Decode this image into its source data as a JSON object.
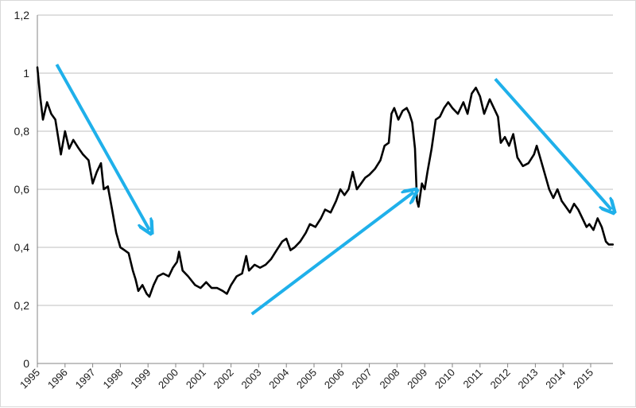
{
  "chart_data": {
    "type": "line",
    "title": "",
    "xlabel": "",
    "ylabel": "",
    "xlim": [
      1995,
      2015.8
    ],
    "ylim": [
      0,
      1.2
    ],
    "y_ticks": [
      0,
      0.2,
      0.4,
      0.6,
      0.8,
      1,
      1.2
    ],
    "y_tick_labels": [
      "0",
      "0,2",
      "0,4",
      "0,6",
      "0,8",
      "1",
      "1,2"
    ],
    "x_ticks": [
      1995,
      1996,
      1997,
      1998,
      1999,
      2000,
      2001,
      2002,
      2003,
      2004,
      2005,
      2006,
      2007,
      2008,
      2009,
      2010,
      2011,
      2012,
      2013,
      2014,
      2015
    ],
    "x_tick_labels": [
      "1995",
      "1996",
      "1997",
      "1998",
      "1999",
      "2000",
      "2001",
      "2002",
      "2003",
      "2004",
      "2005",
      "2006",
      "2007",
      "2008",
      "2009",
      "2010",
      "2011",
      "2012",
      "2013",
      "2014",
      "2015"
    ],
    "grid": "horizontal",
    "legend": "none",
    "series": [
      {
        "color": "#000000",
        "points": [
          [
            1995.0,
            1.02
          ],
          [
            1995.1,
            0.92
          ],
          [
            1995.2,
            0.84
          ],
          [
            1995.35,
            0.9
          ],
          [
            1995.5,
            0.86
          ],
          [
            1995.65,
            0.84
          ],
          [
            1995.85,
            0.72
          ],
          [
            1996.0,
            0.8
          ],
          [
            1996.15,
            0.74
          ],
          [
            1996.3,
            0.77
          ],
          [
            1996.5,
            0.74
          ],
          [
            1996.65,
            0.72
          ],
          [
            1996.85,
            0.7
          ],
          [
            1997.0,
            0.62
          ],
          [
            1997.15,
            0.66
          ],
          [
            1997.3,
            0.69
          ],
          [
            1997.4,
            0.6
          ],
          [
            1997.55,
            0.61
          ],
          [
            1997.7,
            0.53
          ],
          [
            1997.85,
            0.45
          ],
          [
            1998.0,
            0.4
          ],
          [
            1998.15,
            0.39
          ],
          [
            1998.3,
            0.38
          ],
          [
            1998.45,
            0.32
          ],
          [
            1998.55,
            0.29
          ],
          [
            1998.65,
            0.25
          ],
          [
            1998.8,
            0.27
          ],
          [
            1998.95,
            0.24
          ],
          [
            1999.05,
            0.23
          ],
          [
            1999.2,
            0.27
          ],
          [
            1999.35,
            0.3
          ],
          [
            1999.55,
            0.31
          ],
          [
            1999.75,
            0.3
          ],
          [
            1999.9,
            0.33
          ],
          [
            2000.05,
            0.35
          ],
          [
            2000.12,
            0.385
          ],
          [
            2000.25,
            0.32
          ],
          [
            2000.45,
            0.3
          ],
          [
            2000.7,
            0.27
          ],
          [
            2000.9,
            0.26
          ],
          [
            2001.1,
            0.28
          ],
          [
            2001.3,
            0.26
          ],
          [
            2001.5,
            0.26
          ],
          [
            2001.7,
            0.25
          ],
          [
            2001.85,
            0.24
          ],
          [
            2002.0,
            0.27
          ],
          [
            2002.2,
            0.3
          ],
          [
            2002.4,
            0.31
          ],
          [
            2002.55,
            0.37
          ],
          [
            2002.65,
            0.32
          ],
          [
            2002.85,
            0.34
          ],
          [
            2003.05,
            0.33
          ],
          [
            2003.25,
            0.34
          ],
          [
            2003.45,
            0.36
          ],
          [
            2003.65,
            0.39
          ],
          [
            2003.85,
            0.42
          ],
          [
            2004.0,
            0.43
          ],
          [
            2004.15,
            0.39
          ],
          [
            2004.3,
            0.4
          ],
          [
            2004.5,
            0.42
          ],
          [
            2004.7,
            0.45
          ],
          [
            2004.85,
            0.48
          ],
          [
            2005.05,
            0.47
          ],
          [
            2005.25,
            0.5
          ],
          [
            2005.4,
            0.53
          ],
          [
            2005.6,
            0.52
          ],
          [
            2005.8,
            0.56
          ],
          [
            2005.95,
            0.6
          ],
          [
            2006.1,
            0.58
          ],
          [
            2006.25,
            0.6
          ],
          [
            2006.4,
            0.66
          ],
          [
            2006.55,
            0.6
          ],
          [
            2006.7,
            0.62
          ],
          [
            2006.85,
            0.64
          ],
          [
            2007.0,
            0.65
          ],
          [
            2007.2,
            0.67
          ],
          [
            2007.4,
            0.7
          ],
          [
            2007.55,
            0.75
          ],
          [
            2007.7,
            0.76
          ],
          [
            2007.8,
            0.86
          ],
          [
            2007.9,
            0.88
          ],
          [
            2008.05,
            0.84
          ],
          [
            2008.2,
            0.87
          ],
          [
            2008.35,
            0.88
          ],
          [
            2008.45,
            0.86
          ],
          [
            2008.55,
            0.83
          ],
          [
            2008.65,
            0.74
          ],
          [
            2008.72,
            0.56
          ],
          [
            2008.78,
            0.54
          ],
          [
            2008.9,
            0.62
          ],
          [
            2009.0,
            0.6
          ],
          [
            2009.1,
            0.66
          ],
          [
            2009.25,
            0.74
          ],
          [
            2009.4,
            0.84
          ],
          [
            2009.55,
            0.85
          ],
          [
            2009.7,
            0.88
          ],
          [
            2009.85,
            0.9
          ],
          [
            2010.0,
            0.88
          ],
          [
            2010.2,
            0.86
          ],
          [
            2010.4,
            0.9
          ],
          [
            2010.55,
            0.86
          ],
          [
            2010.7,
            0.93
          ],
          [
            2010.85,
            0.95
          ],
          [
            2011.0,
            0.92
          ],
          [
            2011.15,
            0.86
          ],
          [
            2011.35,
            0.91
          ],
          [
            2011.5,
            0.88
          ],
          [
            2011.65,
            0.85
          ],
          [
            2011.75,
            0.76
          ],
          [
            2011.9,
            0.78
          ],
          [
            2012.05,
            0.75
          ],
          [
            2012.2,
            0.79
          ],
          [
            2012.35,
            0.71
          ],
          [
            2012.55,
            0.68
          ],
          [
            2012.75,
            0.69
          ],
          [
            2012.95,
            0.72
          ],
          [
            2013.05,
            0.75
          ],
          [
            2013.2,
            0.7
          ],
          [
            2013.35,
            0.65
          ],
          [
            2013.5,
            0.6
          ],
          [
            2013.65,
            0.57
          ],
          [
            2013.8,
            0.6
          ],
          [
            2013.95,
            0.56
          ],
          [
            2014.1,
            0.54
          ],
          [
            2014.25,
            0.52
          ],
          [
            2014.4,
            0.55
          ],
          [
            2014.55,
            0.53
          ],
          [
            2014.7,
            0.5
          ],
          [
            2014.85,
            0.47
          ],
          [
            2014.95,
            0.48
          ],
          [
            2015.1,
            0.46
          ],
          [
            2015.25,
            0.5
          ],
          [
            2015.4,
            0.47
          ],
          [
            2015.55,
            0.42
          ],
          [
            2015.65,
            0.41
          ],
          [
            2015.8,
            0.41
          ]
        ]
      }
    ],
    "annotations": [
      {
        "type": "arrow",
        "color": "#1fb0ea",
        "from": [
          1995.7,
          1.03
        ],
        "to": [
          1999.05,
          0.46
        ]
      },
      {
        "type": "arrow",
        "color": "#1fb0ea",
        "from": [
          2002.75,
          0.17
        ],
        "to": [
          2008.6,
          0.59
        ]
      },
      {
        "type": "arrow",
        "color": "#1fb0ea",
        "from": [
          2011.55,
          0.98
        ],
        "to": [
          2015.75,
          0.53
        ]
      }
    ]
  }
}
